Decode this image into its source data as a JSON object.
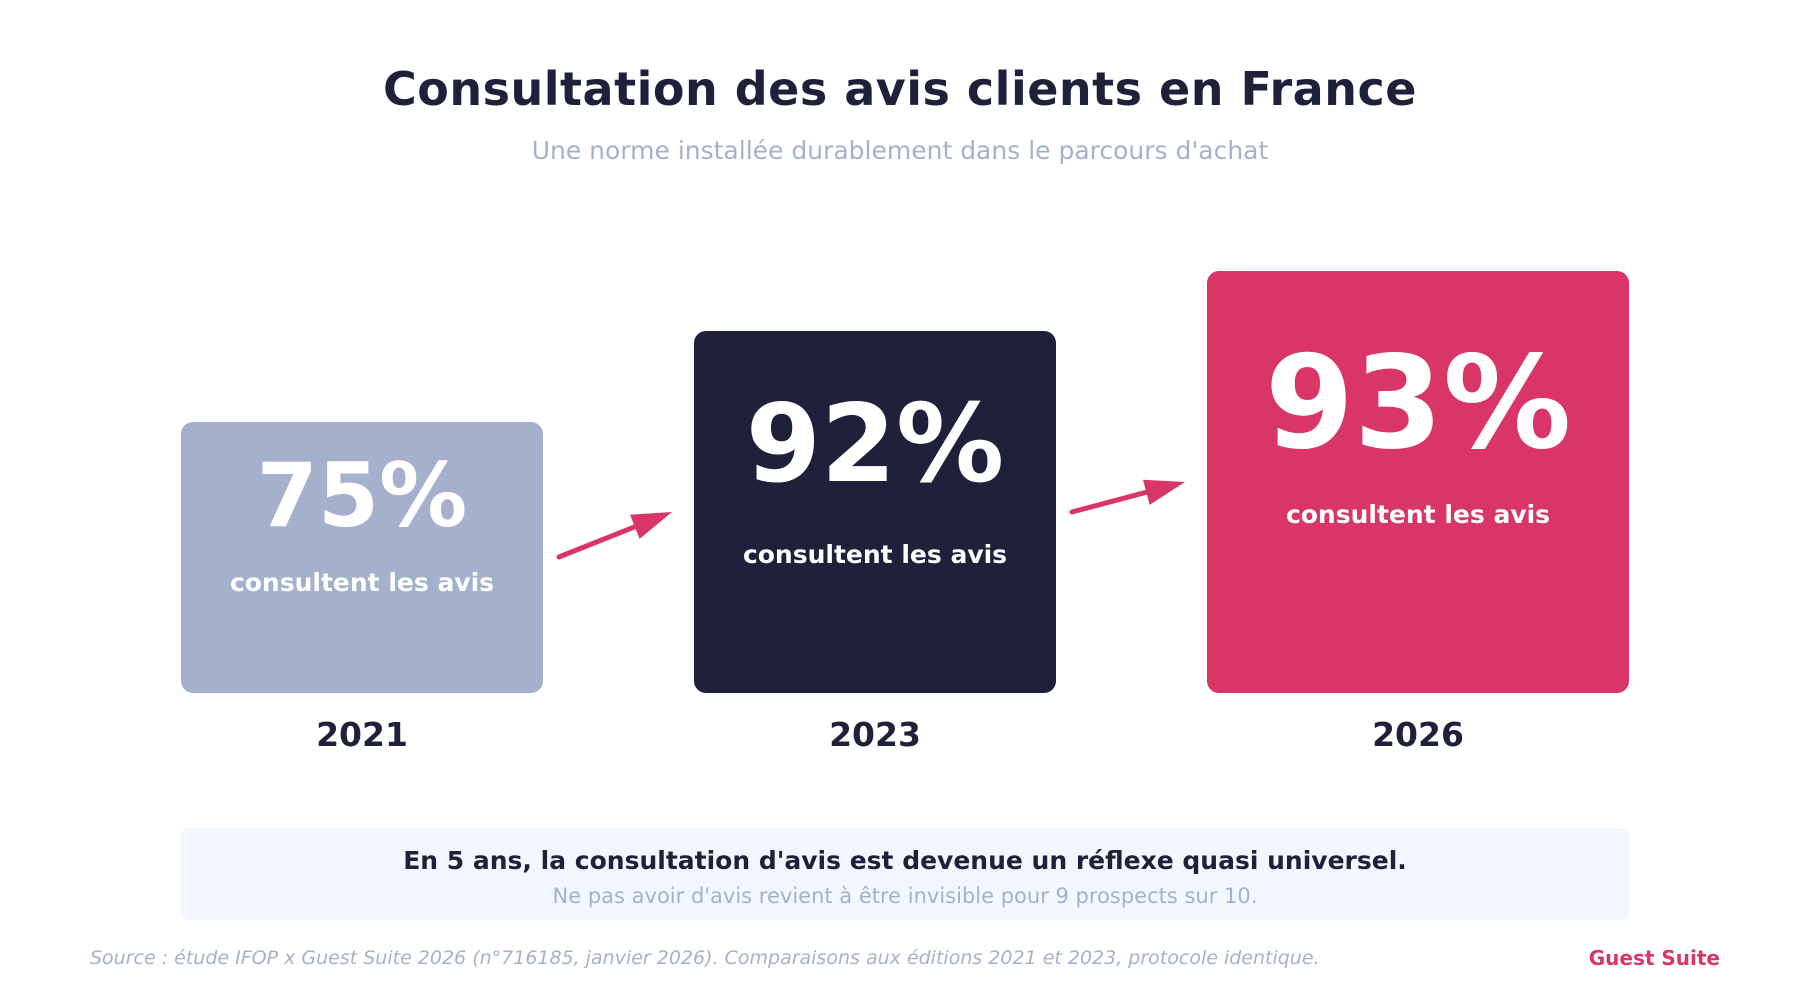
{
  "header": {
    "title": "Consultation des avis clients en France",
    "subtitle": "Une norme installée durablement dans le parcours d'achat"
  },
  "chart_data": {
    "type": "bar",
    "title": "Consultation des avis clients en France",
    "subtitle": "Une norme installée durablement dans le parcours d'achat",
    "categories": [
      "2021",
      "2023",
      "2026"
    ],
    "values": [
      75,
      92,
      93
    ],
    "value_labels": [
      "75%",
      "92%",
      "93%"
    ],
    "caption": "consultent les avis",
    "unit": "%",
    "colors": [
      "#a5b1cc",
      "#1e2139",
      "#d93667"
    ],
    "arrow_color": "#d93667",
    "connectors": "arrows between consecutive years",
    "grid": false,
    "legend": "none"
  },
  "callout": {
    "main": "En 5 ans, la consultation d'avis est devenue un réflexe quasi universel.",
    "sub": "Ne pas avoir d'avis revient à être invisible pour 9 prospects sur 10."
  },
  "footer": {
    "source": "Source : étude IFOP x Guest Suite 2026 (n°716185, janvier 2026). Comparaisons aux éditions 2021 et 2023, protocole identique.",
    "brand": "Guest Suite"
  },
  "colors": {
    "navy": "#1e2139",
    "grey_blue": "#a5b1cc",
    "pink": "#d93667",
    "callout_bg": "#f2f6fd"
  }
}
